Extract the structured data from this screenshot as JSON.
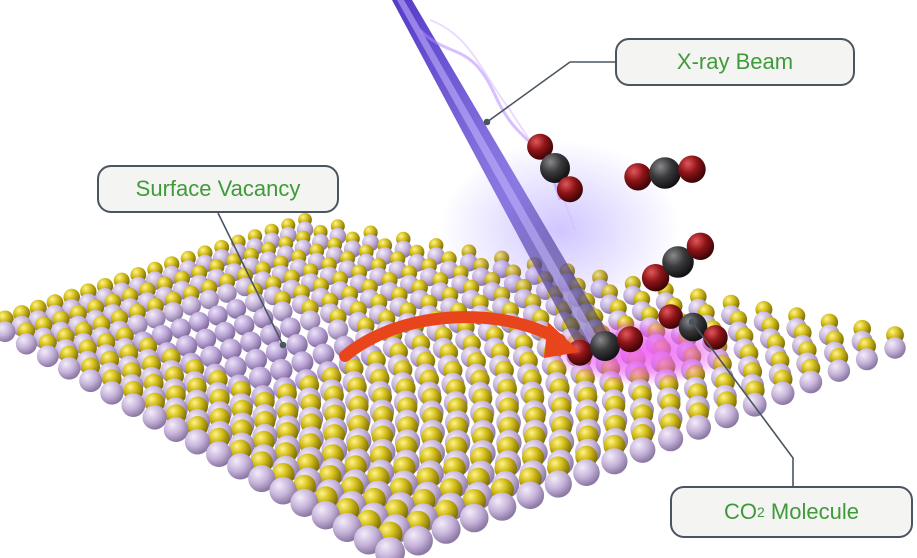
{
  "labels": {
    "xray_beam": "X-ray Beam",
    "surface_vacancy": "Surface Vacancy",
    "co2_prefix": "CO",
    "co2_subscript": "2",
    "co2_suffix": " Molecule"
  },
  "colors": {
    "gold_atom": "#c9b413",
    "gold_atom_light": "#f2e15a",
    "lavender_atom": "#c6b3d9",
    "vacancy_atom": "#b9a3d6",
    "oxygen_atom": "#8e1417",
    "carbon_atom": "#3a3a3c",
    "beam": "#5a3fd0",
    "glow": "#e84cf0",
    "arrow": "#e8451c",
    "label_text": "#3f9a3a",
    "label_border": "#4a5560"
  }
}
